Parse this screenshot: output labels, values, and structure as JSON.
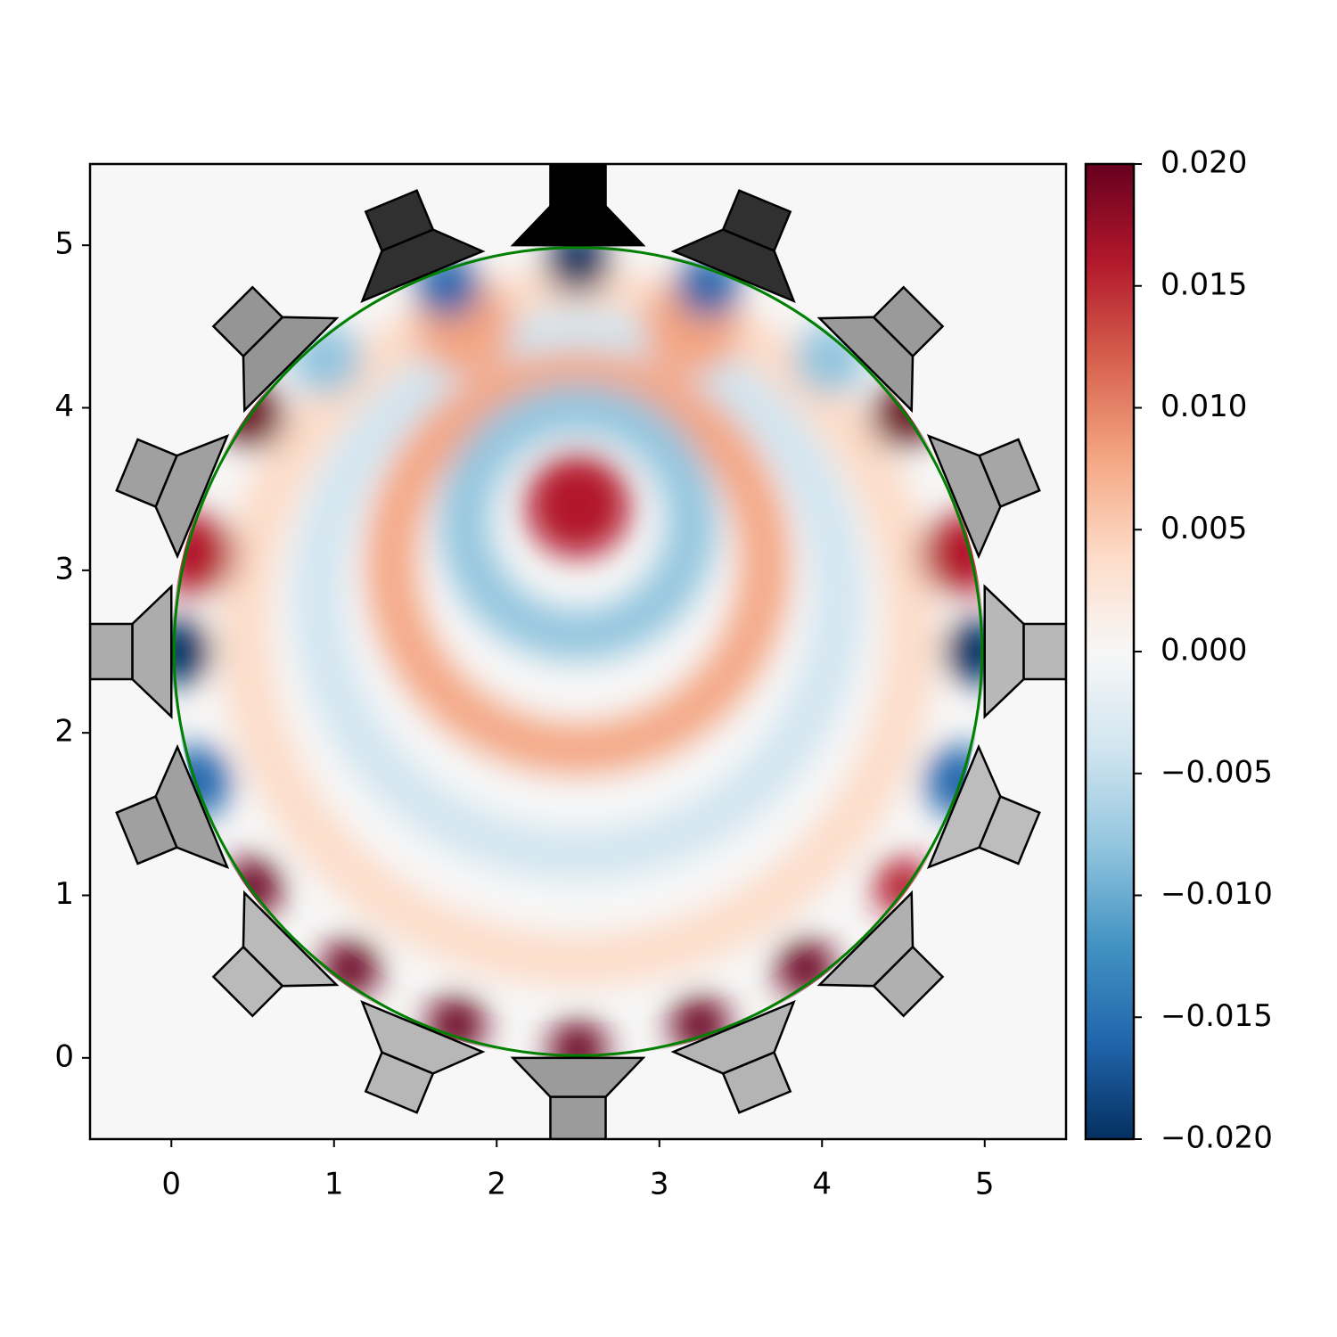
{
  "chart_data": {
    "type": "heatmap",
    "xlim": [
      -0.5,
      5.5
    ],
    "ylim": [
      -0.5,
      5.5
    ],
    "xticks": [
      0,
      1,
      2,
      3,
      4,
      5
    ],
    "yticks": [
      0,
      1,
      2,
      3,
      4,
      5
    ],
    "clim": [
      -0.02,
      0.02
    ],
    "cticks": [
      {
        "value": -0.02,
        "label": "−0.020"
      },
      {
        "value": -0.015,
        "label": "−0.015"
      },
      {
        "value": -0.01,
        "label": "−0.010"
      },
      {
        "value": -0.005,
        "label": "−0.005"
      },
      {
        "value": 0,
        "label": "0.000"
      },
      {
        "value": 0.005,
        "label": "0.005"
      },
      {
        "value": 0.01,
        "label": "0.010"
      },
      {
        "value": 0.015,
        "label": "0.015"
      },
      {
        "value": 0.02,
        "label": "0.020"
      }
    ],
    "colors": [
      "#053061",
      "#2166ac",
      "#4393c3",
      "#92c5de",
      "#d1e5f0",
      "#f7f7f7",
      "#fddbc7",
      "#f4a582",
      "#d6604d",
      "#b2182b",
      "#67001f"
    ]
  }
}
